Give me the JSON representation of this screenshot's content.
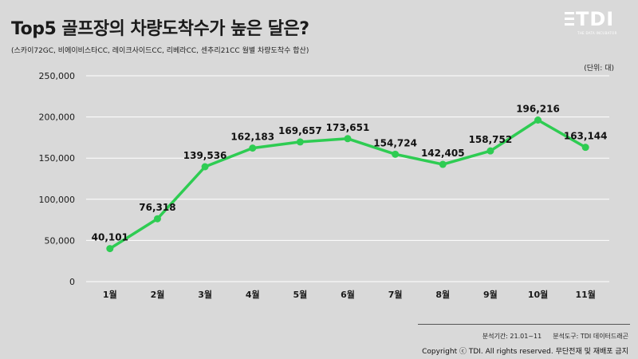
{
  "title": "Top5 골프장의 차량도착수가 높은 달은?",
  "subtitle": "(스카이72GC, 비에이비스타CC, 레이크사이드CC, 리베라CC, 센추리21CC 월별 차량도착수 합산)",
  "unit_label": "(단위: 대)",
  "logo": {
    "text": "TDI",
    "subtext": "THE DATA INCUBATOR"
  },
  "footer": {
    "period": "분석기간: 21.01~11",
    "tool": "분석도구: TDI 데이터드래곤",
    "copyright": "Copyright ⓒ TDI. All rights reserved. 무단전재 및 재배포 금지"
  },
  "chart_data": {
    "type": "line",
    "title": "Top5 골프장의 차량도착수가 높은 달은?",
    "xlabel": "",
    "ylabel": "",
    "categories": [
      "1월",
      "2월",
      "3월",
      "4월",
      "5월",
      "6월",
      "7월",
      "8월",
      "9월",
      "10월",
      "11월"
    ],
    "values": [
      40101,
      76318,
      139536,
      162183,
      169657,
      173651,
      154724,
      142405,
      158752,
      196216,
      163144
    ],
    "data_labels": [
      "40,101",
      "76,318",
      "139,536",
      "162,183",
      "169,657",
      "173,651",
      "154,724",
      "142,405",
      "158,752",
      "196,216",
      "163,144"
    ],
    "yticks": [
      0,
      50000,
      100000,
      150000,
      200000,
      250000
    ],
    "ytick_labels": [
      "0",
      "50,000",
      "100,000",
      "150,000",
      "200,000",
      "250,000"
    ],
    "ylim": [
      0,
      250000
    ],
    "grid": true,
    "legend": "none",
    "line_color": "#2ecc52",
    "grid_color": "#ffffff"
  }
}
